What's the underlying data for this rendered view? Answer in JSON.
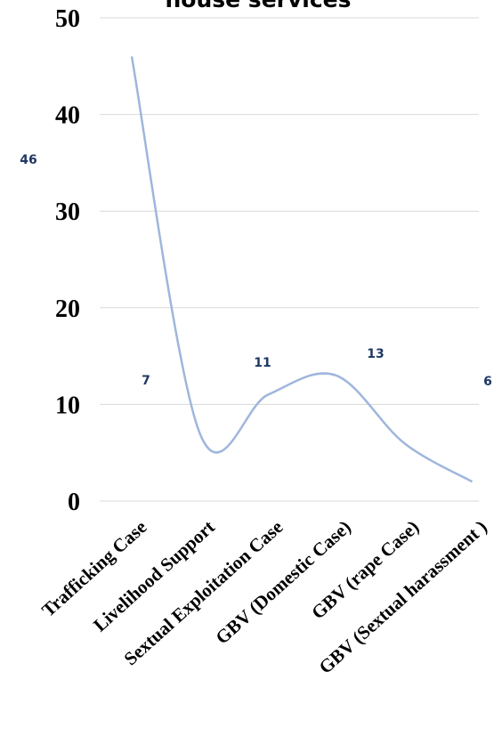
{
  "chart_data": {
    "type": "line",
    "title": "house services",
    "categories": [
      "Trafficking Case",
      "Livelihood Support",
      "Sextual Exploitation Case",
      "GBV (Domestic Case)",
      "GBV (rape Case)",
      "GBV (Sextual harassment )"
    ],
    "series": [
      {
        "values": [
          46,
          7,
          11,
          13,
          6,
          2
        ]
      }
    ],
    "data_labels": [
      "46",
      "7",
      "11",
      "13",
      "6"
    ],
    "yticks": [
      "0",
      "10",
      "20",
      "30",
      "40",
      "50"
    ],
    "ylim": [
      0,
      50
    ],
    "grid": true,
    "line_color": "#9fb6dd",
    "label_color": "#1f3864"
  }
}
